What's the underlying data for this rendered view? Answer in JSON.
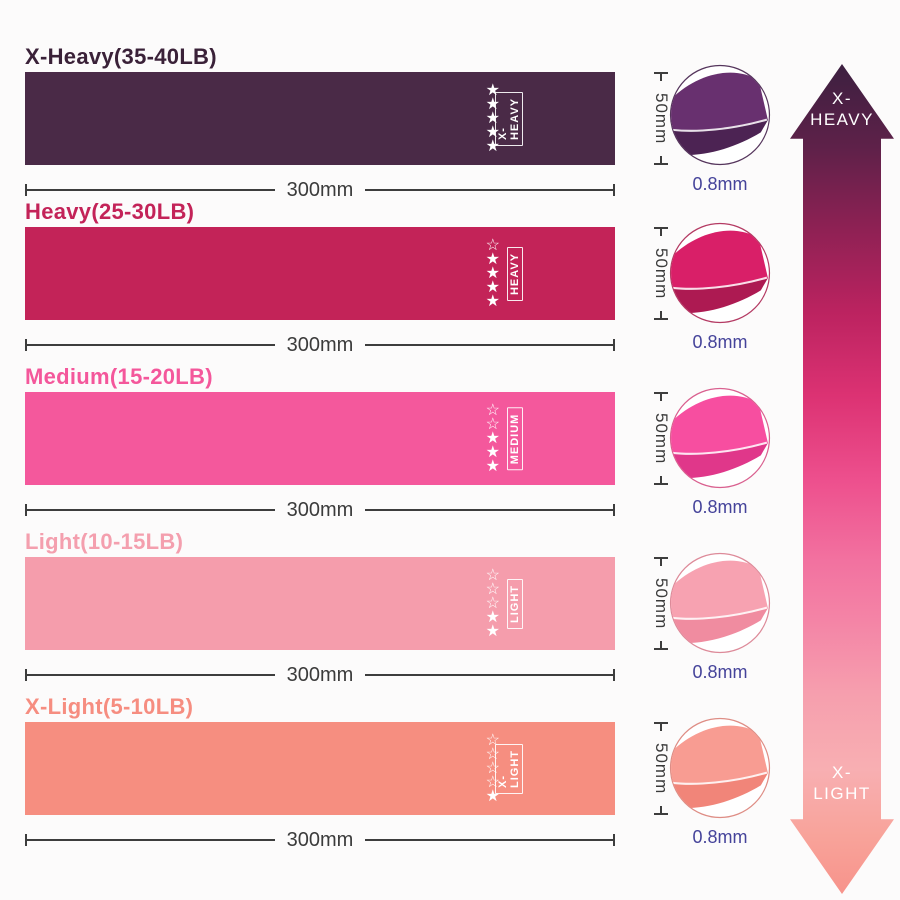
{
  "page": {
    "background": "#fcfbfb"
  },
  "bands": [
    {
      "title": "X-Heavy(35-40LB)",
      "title_color": "#3a2138",
      "color": "#4a2a47",
      "tag_label": "X-HEAVY",
      "stars": "★★★★★",
      "width_label": "300mm",
      "height_label": "50mm",
      "thickness_label": "0.8mm",
      "circle_main": "#68306f",
      "circle_dark": "#4c2353",
      "circle_ring": "#55355c"
    },
    {
      "title": "Heavy(25-30LB)",
      "title_color": "#c32358",
      "color": "#c32358",
      "tag_label": "HEAVY",
      "stars": "☆★★★★",
      "width_label": "300mm",
      "height_label": "50mm",
      "thickness_label": "0.8mm",
      "circle_main": "#d91f68",
      "circle_dark": "#ad1a52",
      "circle_ring": "#b43a63"
    },
    {
      "title": "Medium(15-20LB)",
      "title_color": "#f4579b",
      "color": "#f4589c",
      "tag_label": "MEDIUM",
      "stars": "☆☆★★★",
      "width_label": "300mm",
      "height_label": "50mm",
      "thickness_label": "0.8mm",
      "circle_main": "#f74ea0",
      "circle_dark": "#e0378a",
      "circle_ring": "#d9608f"
    },
    {
      "title": "Light(10-15LB)",
      "title_color": "#f49fae",
      "color": "#f59dac",
      "tag_label": "LIGHT",
      "stars": "☆☆☆★★",
      "width_label": "300mm",
      "height_label": "50mm",
      "thickness_label": "0.8mm",
      "circle_main": "#f7a2b1",
      "circle_dark": "#f08ca0",
      "circle_ring": "#dd8a99"
    },
    {
      "title": "X-Light(5-10LB)",
      "title_color": "#f68d80",
      "color": "#f68e80",
      "tag_label": "X-LIGHT",
      "stars": "☆☆☆☆★",
      "width_label": "300mm",
      "height_label": "50mm",
      "thickness_label": "0.8mm",
      "circle_main": "#f89c92",
      "circle_dark": "#f18579",
      "circle_ring": "#de8d85"
    }
  ],
  "scale_arrow": {
    "top_label": "X-\nHEAVY",
    "bottom_label": "X-\nLIGHT",
    "gradient": [
      "#3c2040 0%",
      "#5e2149 10%",
      "#8f2154 20%",
      "#bc2360 30%",
      "#dc3273 40%",
      "#ed4f8d 50%",
      "#f272a0 60%",
      "#f484a6 67%",
      "#f69fae 76%",
      "#f8afb2 85%",
      "#f8a39a 93%",
      "#f7938b 100%"
    ]
  }
}
